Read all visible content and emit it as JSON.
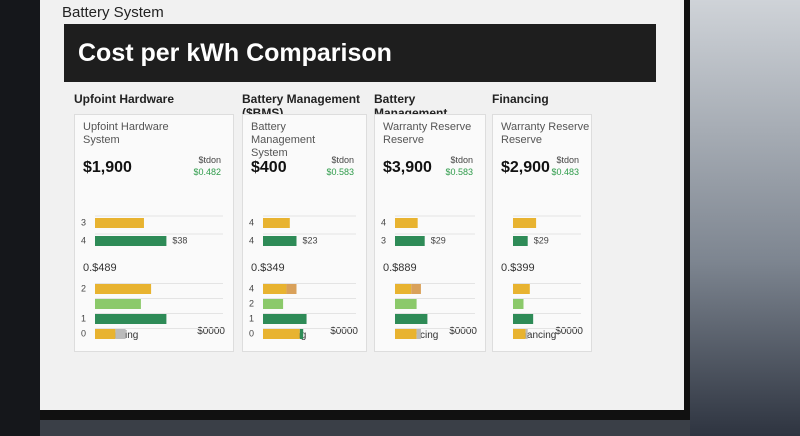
{
  "header": {
    "app_title": "Battery System",
    "title": "Cost per kWh Comparison"
  },
  "xlim": [
    0,
    100
  ],
  "cards": [
    {
      "heading": "Upfoint Hardware",
      "subtitle": "Upfoint Hardware System",
      "value": "$1,900",
      "side_label": "$tdon",
      "side_value": "$0.482",
      "top": {
        "value_label": "$38",
        "rows": [
          {
            "tick": "3",
            "bars": [
              {
                "value": 48,
                "color": "#e8b330"
              }
            ]
          },
          {
            "tick": "4",
            "bars": [
              {
                "value": 70,
                "color": "#2e8b57"
              }
            ]
          }
        ]
      },
      "mid_label": "0.$489",
      "bottom": {
        "rows": [
          {
            "tick": "2",
            "bars": [
              {
                "value": 55,
                "color": "#e8b330"
              }
            ]
          },
          {
            "bars": [
              {
                "value": 45,
                "color": "#8bc96a"
              }
            ]
          },
          {
            "tick": "1",
            "bars": [
              {
                "value": 70,
                "color": "#2e8b57"
              }
            ]
          },
          {
            "tick": "0",
            "bars": [
              {
                "value": 20,
                "color": "#e8b330"
              },
              {
                "value": 10,
                "color": "#bbbbbb"
              }
            ]
          }
        ]
      },
      "footer_left": "Financing",
      "footer_right": "$0000"
    },
    {
      "heading": "Battery Management ($BMS)",
      "subtitle": "Battery Management System",
      "value": "$400",
      "side_label": "$tdon",
      "side_value": "$0.583",
      "top": {
        "value_label": "$23",
        "rows": [
          {
            "tick": "4",
            "bars": [
              {
                "value": 40,
                "color": "#e8b330"
              }
            ]
          },
          {
            "tick": "4",
            "bars": [
              {
                "value": 50,
                "color": "#2e8b57"
              }
            ]
          }
        ]
      },
      "mid_label": "0.$349",
      "bottom": {
        "rows": [
          {
            "tick": "4",
            "bars": [
              {
                "value": 35,
                "color": "#e8b330"
              },
              {
                "value": 15,
                "color": "#d9a15a"
              }
            ]
          },
          {
            "tick": "2",
            "bars": [
              {
                "value": 30,
                "color": "#8bc96a"
              }
            ]
          },
          {
            "tick": "1",
            "bars": [
              {
                "value": 65,
                "color": "#2e8b57"
              }
            ]
          },
          {
            "tick": "0",
            "bars": [
              {
                "value": 55,
                "color": "#e8b330"
              },
              {
                "value": 5,
                "color": "#2e8b57"
              }
            ]
          }
        ]
      },
      "footer_left": "Financing",
      "footer_right": "$0000"
    },
    {
      "heading": "Battery Management ($IBMS)",
      "subtitle": "Warranty Reserve Reserve",
      "value": "$3,900",
      "side_label": "$tdon",
      "side_value": "$0.583",
      "top": {
        "value_label": "$29",
        "rows": [
          {
            "tick": "4",
            "bars": [
              {
                "value": 42,
                "color": "#e8b330"
              }
            ]
          },
          {
            "tick": "3",
            "bars": [
              {
                "value": 55,
                "color": "#2e8b57"
              }
            ]
          }
        ]
      },
      "mid_label": "0.$889",
      "bottom": {
        "rows": [
          {
            "bars": [
              {
                "value": 30,
                "color": "#e8b330"
              },
              {
                "value": 18,
                "color": "#d9a15a"
              }
            ]
          },
          {
            "bars": [
              {
                "value": 40,
                "color": "#8bc96a"
              }
            ]
          },
          {
            "bars": [
              {
                "value": 60,
                "color": "#2e8b57"
              }
            ]
          },
          {
            "bars": [
              {
                "value": 40,
                "color": "#e8b330"
              },
              {
                "value": 8,
                "color": "#bbbbbb"
              }
            ]
          }
        ]
      },
      "footer_left": "Financing",
      "footer_right": "$0000"
    },
    {
      "heading": "Financing",
      "subtitle": "Warranty Reserve Reserve",
      "value": "$2,900",
      "side_label": "$tdon",
      "side_value": "$0.483",
      "top": {
        "value_label": "$29",
        "rows": [
          {
            "bars": [
              {
                "value": 55,
                "color": "#e8b330"
              }
            ]
          },
          {
            "bars": [
              {
                "value": 35,
                "color": "#2e8b57"
              }
            ]
          }
        ]
      },
      "mid_label": "0.$399",
      "bottom": {
        "rows": [
          {
            "bars": [
              {
                "value": 40,
                "color": "#e8b330"
              }
            ]
          },
          {
            "bars": [
              {
                "value": 25,
                "color": "#8bc96a"
              }
            ]
          },
          {
            "bars": [
              {
                "value": 48,
                "color": "#2e8b57"
              }
            ]
          },
          {
            "bars": [
              {
                "value": 30,
                "color": "#e8b330"
              },
              {
                "value": 5,
                "color": "#bbbbbb"
              }
            ]
          }
        ]
      },
      "footer_left": "Financing",
      "footer_right": "$0000"
    }
  ]
}
